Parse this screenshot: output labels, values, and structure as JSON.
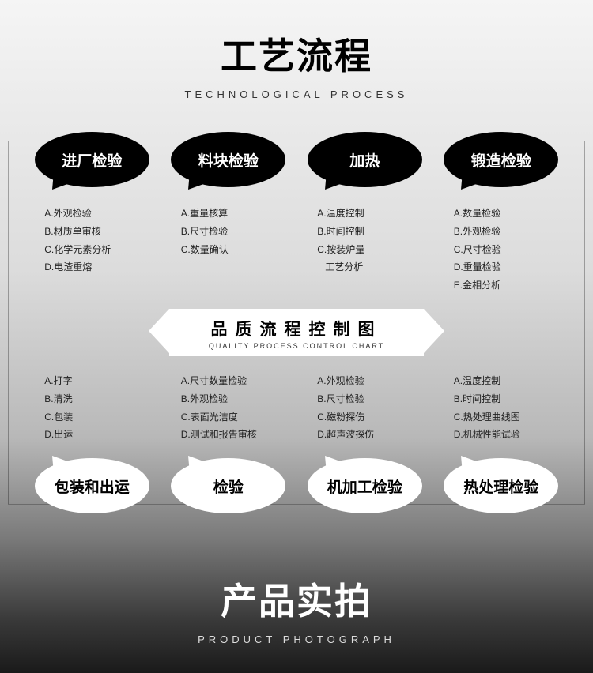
{
  "header": {
    "title_cn": "工艺流程",
    "title_en": "TECHNOLOGICAL PROCESS"
  },
  "top_steps": [
    {
      "label": "进厂检验",
      "items": [
        "A.外观检验",
        "B.材质单审核",
        "C.化学元素分析",
        "D.电渣重熔"
      ]
    },
    {
      "label": "料块检验",
      "items": [
        "A.重量核算",
        "B.尺寸检验",
        "C.数量确认"
      ]
    },
    {
      "label": "加热",
      "items": [
        "A.温度控制",
        "B.时间控制",
        "C.按装炉量",
        "   工艺分析"
      ]
    },
    {
      "label": "锻造检验",
      "items": [
        "A.数量检验",
        "B.外观检验",
        "C.尺寸检验",
        "D.重量检验",
        "E.金相分析"
      ]
    }
  ],
  "banner": {
    "title_cn": "品质流程控制图",
    "title_en": "QUALITY PROCESS CONTROL CHART"
  },
  "bottom_steps": [
    {
      "label": "包装和出运",
      "items": [
        "A.打字",
        "B.清洗",
        "C.包装",
        "D.出运"
      ]
    },
    {
      "label": "检验",
      "items": [
        "A.尺寸数量检验",
        "B.外观检验",
        "C.表面光洁度",
        "D.测试和报告审核"
      ]
    },
    {
      "label": "机加工检验",
      "items": [
        "A.外观检验",
        "B.尺寸检验",
        "C.磁粉探伤",
        "D.超声波探伤"
      ]
    },
    {
      "label": "热处理检验",
      "items": [
        "A.温度控制",
        "B.时间控制",
        "C.热处理曲线图",
        "D.机械性能试验"
      ]
    }
  ],
  "footer": {
    "title_cn": "产品实拍",
    "title_en": "PRODUCT PHOTOGRAPH"
  },
  "colors": {
    "bubble_black": "#000000",
    "bubble_white": "#ffffff",
    "text_dark": "#222222",
    "text_light": "#ffffff"
  }
}
